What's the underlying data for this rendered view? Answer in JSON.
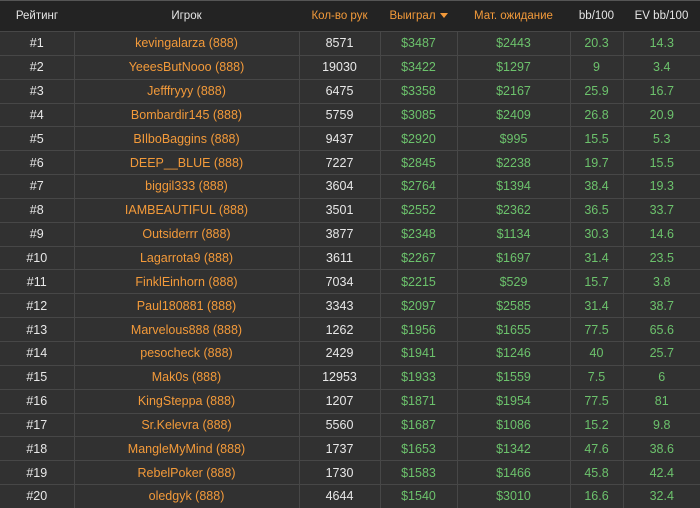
{
  "headers": {
    "rank": "Рейтинг",
    "player": "Игрок",
    "hands": "Кол-во рук",
    "won": "Выиграл",
    "ev": "Мат. ожидание",
    "bb100": "bb/100",
    "evbb100": "EV bb/100"
  },
  "sort": {
    "column": "won",
    "direction": "desc",
    "icon": "caret-down-icon"
  },
  "colors": {
    "accent": "#f39a3a",
    "positive": "#6cc26c",
    "background": "#313131"
  },
  "rows": [
    [
      "#1",
      "kevingalarza (888)",
      "8571",
      "$3487",
      "$2443",
      "20.3",
      "14.3"
    ],
    [
      "#2",
      "YeeesButNooo (888)",
      "19030",
      "$3422",
      "$1297",
      "9",
      "3.4"
    ],
    [
      "#3",
      "Jefffryyy (888)",
      "6475",
      "$3358",
      "$2167",
      "25.9",
      "16.7"
    ],
    [
      "#4",
      "Bombardir145 (888)",
      "5759",
      "$3085",
      "$2409",
      "26.8",
      "20.9"
    ],
    [
      "#5",
      "BIlboBaggins (888)",
      "9437",
      "$2920",
      "$995",
      "15.5",
      "5.3"
    ],
    [
      "#6",
      "DEEP__BLUE (888)",
      "7227",
      "$2845",
      "$2238",
      "19.7",
      "15.5"
    ],
    [
      "#7",
      "biggil333 (888)",
      "3604",
      "$2764",
      "$1394",
      "38.4",
      "19.3"
    ],
    [
      "#8",
      "IAMBEAUTIFUL (888)",
      "3501",
      "$2552",
      "$2362",
      "36.5",
      "33.7"
    ],
    [
      "#9",
      "Outsiderrr (888)",
      "3877",
      "$2348",
      "$1134",
      "30.3",
      "14.6"
    ],
    [
      "#10",
      "Lagarrota9 (888)",
      "3611",
      "$2267",
      "$1697",
      "31.4",
      "23.5"
    ],
    [
      "#11",
      "FinklEinhorn (888)",
      "7034",
      "$2215",
      "$529",
      "15.7",
      "3.8"
    ],
    [
      "#12",
      "Paul180881 (888)",
      "3343",
      "$2097",
      "$2585",
      "31.4",
      "38.7"
    ],
    [
      "#13",
      "Marvelous888 (888)",
      "1262",
      "$1956",
      "$1655",
      "77.5",
      "65.6"
    ],
    [
      "#14",
      "pesocheck (888)",
      "2429",
      "$1941",
      "$1246",
      "40",
      "25.7"
    ],
    [
      "#15",
      "Mak0s (888)",
      "12953",
      "$1933",
      "$1559",
      "7.5",
      "6"
    ],
    [
      "#16",
      "KingSteppa (888)",
      "1207",
      "$1871",
      "$1954",
      "77.5",
      "81"
    ],
    [
      "#17",
      "Sr.Kelevra (888)",
      "5560",
      "$1687",
      "$1086",
      "15.2",
      "9.8"
    ],
    [
      "#18",
      "MangleMyMind (888)",
      "1737",
      "$1653",
      "$1342",
      "47.6",
      "38.6"
    ],
    [
      "#19",
      "RebelPoker (888)",
      "1730",
      "$1583",
      "$1466",
      "45.8",
      "42.4"
    ],
    [
      "#20",
      "oledgyk (888)",
      "4644",
      "$1540",
      "$3010",
      "16.6",
      "32.4"
    ]
  ]
}
